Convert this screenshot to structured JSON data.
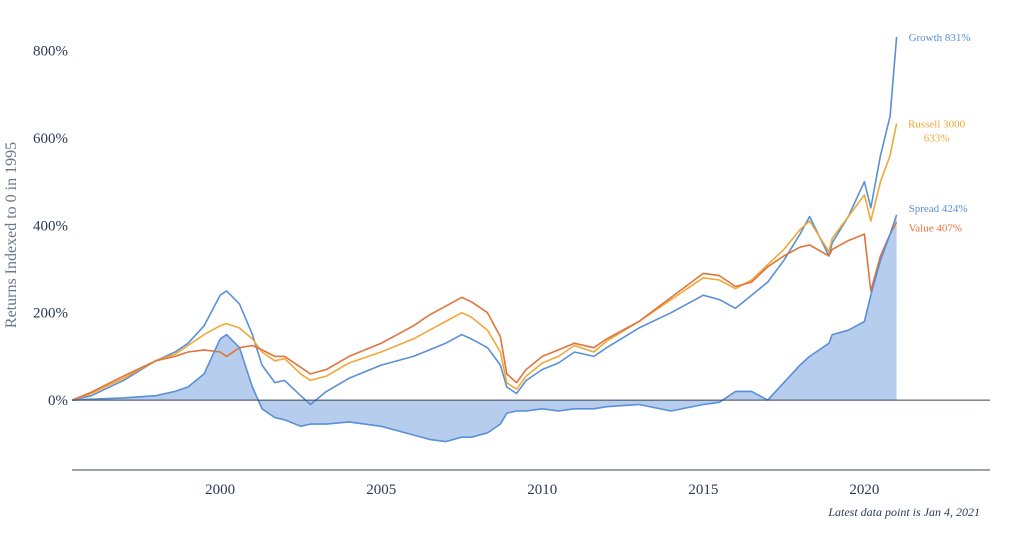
{
  "chart_data": {
    "type": "line",
    "title": "",
    "xlabel": "",
    "ylabel": "Returns Indexed to 0 in 1995",
    "xlim": [
      1995.4,
      2023.9
    ],
    "ylim": [
      -160,
      870
    ],
    "x_ticks": [
      {
        "value": 2000,
        "label": "2000"
      },
      {
        "value": 2005,
        "label": "2005"
      },
      {
        "value": 2010,
        "label": "2010"
      },
      {
        "value": 2015,
        "label": "2015"
      },
      {
        "value": 2020,
        "label": "2020"
      }
    ],
    "y_ticks": [
      {
        "value": 0,
        "label": "0%"
      },
      {
        "value": 200,
        "label": "200%"
      },
      {
        "value": 400,
        "label": "400%"
      },
      {
        "value": 600,
        "label": "600%"
      },
      {
        "value": 800,
        "label": "800%"
      }
    ],
    "grid": false,
    "legend": "none",
    "x": [
      1995.4,
      1996.0,
      1997.0,
      1998.0,
      1998.6,
      1999.0,
      1999.5,
      2000.0,
      2000.2,
      2000.6,
      2001.0,
      2001.3,
      2001.7,
      2002.0,
      2002.5,
      2002.8,
      2003.3,
      2004.0,
      2005.0,
      2006.0,
      2006.5,
      2007.0,
      2007.5,
      2007.8,
      2008.3,
      2008.7,
      2008.9,
      2009.2,
      2009.5,
      2010.0,
      2010.5,
      2011.0,
      2011.6,
      2012.0,
      2013.0,
      2014.0,
      2015.0,
      2015.5,
      2016.0,
      2016.5,
      2017.0,
      2017.5,
      2018.0,
      2018.3,
      2018.9,
      2019.0,
      2019.5,
      2020.0,
      2020.2,
      2020.5,
      2020.8,
      2021.0
    ],
    "series": [
      {
        "name": "Growth",
        "end_label": "Growth 831%",
        "color": "#5b8fd6",
        "values": [
          0,
          10,
          45,
          90,
          110,
          130,
          170,
          240,
          250,
          220,
          150,
          80,
          40,
          45,
          10,
          -10,
          20,
          50,
          80,
          100,
          115,
          130,
          150,
          140,
          120,
          80,
          30,
          15,
          45,
          70,
          85,
          110,
          100,
          120,
          165,
          200,
          240,
          230,
          210,
          240,
          270,
          320,
          380,
          420,
          330,
          360,
          420,
          500,
          440,
          560,
          650,
          831
        ]
      },
      {
        "name": "Russell 3000",
        "end_label": "Russell 3000 633%",
        "color": "#f0a838",
        "values": [
          0,
          15,
          50,
          90,
          105,
          125,
          150,
          170,
          175,
          165,
          140,
          110,
          90,
          95,
          60,
          45,
          55,
          85,
          110,
          140,
          160,
          180,
          200,
          190,
          160,
          110,
          40,
          25,
          55,
          85,
          100,
          125,
          110,
          135,
          180,
          230,
          280,
          275,
          255,
          275,
          310,
          345,
          390,
          410,
          340,
          370,
          420,
          470,
          410,
          500,
          560,
          633
        ]
      },
      {
        "name": "Value",
        "end_label": "Value 407%",
        "color": "#e2733a",
        "values": [
          0,
          18,
          55,
          90,
          100,
          110,
          115,
          110,
          100,
          120,
          125,
          115,
          100,
          100,
          75,
          60,
          70,
          100,
          130,
          170,
          195,
          215,
          235,
          225,
          200,
          145,
          60,
          40,
          70,
          100,
          115,
          130,
          120,
          140,
          180,
          235,
          290,
          285,
          260,
          270,
          305,
          330,
          350,
          355,
          330,
          345,
          365,
          380,
          250,
          330,
          380,
          407
        ]
      },
      {
        "name": "Spread",
        "end_label": "Spread 424%",
        "color": "#5b8fd6",
        "fill": "#a9c4ea",
        "values": [
          0,
          2,
          5,
          10,
          20,
          30,
          60,
          140,
          150,
          120,
          30,
          -20,
          -40,
          -45,
          -60,
          -55,
          -55,
          -50,
          -60,
          -80,
          -90,
          -95,
          -85,
          -85,
          -75,
          -55,
          -30,
          -25,
          -25,
          -20,
          -25,
          -20,
          -20,
          -15,
          -10,
          -25,
          -10,
          -5,
          20,
          20,
          0,
          40,
          80,
          100,
          130,
          150,
          160,
          180,
          240,
          320,
          380,
          424
        ]
      }
    ]
  },
  "footnote": "Latest data point is Jan 4, 2021"
}
